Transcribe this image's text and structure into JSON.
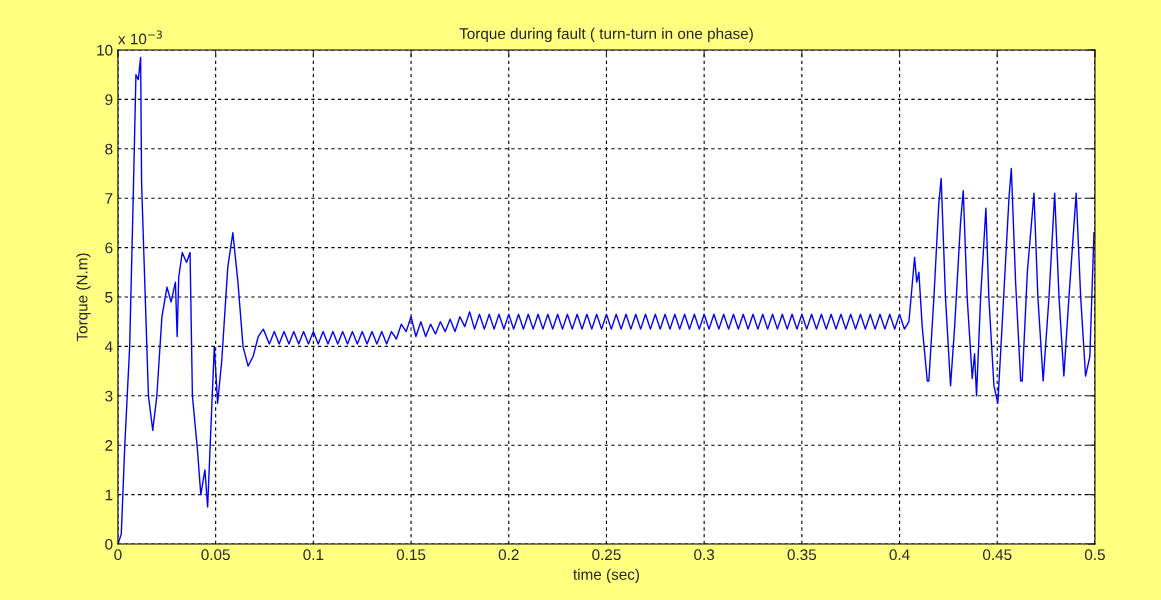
{
  "chart_data": {
    "type": "line",
    "title": "Torque during fault ( turn-turn in one phase)",
    "xlabel": "time (sec)",
    "ylabel": "Torque (N.m)",
    "annotations": [
      "x 10$^{−3}$"
    ],
    "xlim": [
      0,
      0.5
    ],
    "xticks": [
      0,
      0.05,
      0.1,
      0.15,
      0.2,
      0.25,
      0.3,
      0.35,
      0.4,
      0.45,
      0.5
    ],
    "ylim": [
      0,
      10
    ],
    "yticks": [
      0,
      1,
      2,
      3,
      4,
      5,
      6,
      7,
      8,
      9,
      10
    ],
    "grid": true,
    "series": [
      {
        "color": "#0000ff",
        "x": [
          0,
          0.0017,
          0.0035,
          0.006,
          0.0078,
          0.0092,
          0.0104,
          0.0116,
          0.0121,
          0.0138,
          0.0156,
          0.0178,
          0.0199,
          0.0225,
          0.0251,
          0.0272,
          0.0294,
          0.0303,
          0.0311,
          0.0329,
          0.0351,
          0.0369,
          0.0381,
          0.0407,
          0.0424,
          0.0445,
          0.0459,
          0.0472,
          0.0493,
          0.051,
          0.0531,
          0.0562,
          0.0588,
          0.0614,
          0.064,
          0.0666,
          0.0692,
          0.0718,
          0.0744,
          0.0775,
          0.08,
          0.0825,
          0.085,
          0.0875,
          0.09,
          0.0925,
          0.095,
          0.0975,
          0.1,
          0.1025,
          0.105,
          0.1075,
          0.11,
          0.1125,
          0.115,
          0.1175,
          0.12,
          0.1225,
          0.125,
          0.1275,
          0.13,
          0.1325,
          0.135,
          0.1375,
          0.14,
          0.1425,
          0.145,
          0.1475,
          0.15,
          0.1525,
          0.155,
          0.1575,
          0.16,
          0.1625,
          0.165,
          0.1675,
          0.17,
          0.1725,
          0.175,
          0.1775,
          0.18,
          0.1825,
          0.185,
          0.1875,
          0.19,
          0.1925,
          0.195,
          0.1975,
          0.2,
          0.2025,
          0.205,
          0.2075,
          0.21,
          0.2125,
          0.215,
          0.2175,
          0.22,
          0.2225,
          0.225,
          0.2275,
          0.23,
          0.2325,
          0.235,
          0.2375,
          0.24,
          0.2425,
          0.245,
          0.2475,
          0.25,
          0.2525,
          0.255,
          0.2575,
          0.26,
          0.2625,
          0.265,
          0.2675,
          0.27,
          0.2725,
          0.275,
          0.2775,
          0.28,
          0.2825,
          0.285,
          0.2875,
          0.29,
          0.2925,
          0.295,
          0.2975,
          0.3,
          0.3025,
          0.305,
          0.3075,
          0.31,
          0.3125,
          0.315,
          0.3175,
          0.32,
          0.3225,
          0.325,
          0.3275,
          0.33,
          0.3325,
          0.335,
          0.3375,
          0.34,
          0.3425,
          0.345,
          0.3475,
          0.35,
          0.3525,
          0.355,
          0.3575,
          0.36,
          0.3625,
          0.365,
          0.3675,
          0.37,
          0.3725,
          0.375,
          0.3775,
          0.38,
          0.3825,
          0.385,
          0.3875,
          0.39,
          0.3925,
          0.395,
          0.3975,
          0.4,
          0.4025,
          0.4048,
          0.4077,
          0.4088,
          0.4099,
          0.4116,
          0.4142,
          0.415,
          0.4176,
          0.4201,
          0.4213,
          0.4235,
          0.4261,
          0.4282,
          0.4312,
          0.4326,
          0.4346,
          0.4372,
          0.4384,
          0.4394,
          0.4415,
          0.4442,
          0.4457,
          0.4483,
          0.4503,
          0.4526,
          0.456,
          0.4572,
          0.4594,
          0.462,
          0.4628,
          0.4654,
          0.4688,
          0.4708,
          0.4735,
          0.4765,
          0.4794,
          0.4816,
          0.4841,
          0.4867,
          0.4904,
          0.4927,
          0.4952,
          0.4974,
          0.4995,
          0.5
        ],
        "values": [
          0,
          0.2,
          2,
          4,
          7,
          9.5,
          9.4,
          9.85,
          7.3,
          5.2,
          3,
          2.3,
          3,
          4.6,
          5.2,
          4.9,
          5.3,
          4.2,
          5.4,
          5.9,
          5.7,
          5.9,
          3,
          1.9,
          1,
          1.5,
          0.75,
          2,
          4,
          2.85,
          3.7,
          5.6,
          6.3,
          5.3,
          4,
          3.6,
          3.8,
          4.2,
          4.35,
          4.05,
          4.3,
          4.05,
          4.3,
          4.05,
          4.3,
          4.05,
          4.3,
          4.05,
          4.3,
          4.05,
          4.3,
          4.05,
          4.3,
          4.05,
          4.3,
          4.05,
          4.3,
          4.05,
          4.3,
          4.05,
          4.3,
          4.05,
          4.3,
          4.05,
          4.3,
          4.15,
          4.45,
          4.3,
          4.6,
          4.2,
          4.5,
          4.2,
          4.45,
          4.25,
          4.5,
          4.3,
          4.55,
          4.3,
          4.6,
          4.4,
          4.7,
          4.35,
          4.65,
          4.35,
          4.65,
          4.35,
          4.65,
          4.35,
          4.65,
          4.35,
          4.65,
          4.35,
          4.65,
          4.35,
          4.65,
          4.35,
          4.65,
          4.35,
          4.65,
          4.35,
          4.65,
          4.35,
          4.65,
          4.35,
          4.65,
          4.35,
          4.65,
          4.35,
          4.65,
          4.35,
          4.65,
          4.35,
          4.65,
          4.35,
          4.65,
          4.35,
          4.65,
          4.35,
          4.65,
          4.35,
          4.65,
          4.35,
          4.65,
          4.35,
          4.65,
          4.35,
          4.65,
          4.35,
          4.65,
          4.35,
          4.65,
          4.35,
          4.65,
          4.35,
          4.65,
          4.35,
          4.65,
          4.35,
          4.65,
          4.35,
          4.65,
          4.35,
          4.65,
          4.35,
          4.65,
          4.35,
          4.65,
          4.35,
          4.65,
          4.35,
          4.65,
          4.35,
          4.65,
          4.35,
          4.65,
          4.35,
          4.65,
          4.35,
          4.65,
          4.35,
          4.65,
          4.35,
          4.65,
          4.35,
          4.65,
          4.35,
          4.65,
          4.35,
          4.65,
          4.35,
          4.5,
          5.8,
          5.3,
          5.5,
          4.4,
          3.3,
          3.3,
          5,
          6.9,
          7.4,
          5,
          3.2,
          4.4,
          6.5,
          7.15,
          5,
          3.35,
          3.85,
          3,
          5,
          6.8,
          5,
          3.2,
          2.85,
          4.5,
          7,
          7.6,
          5.3,
          3.3,
          3.3,
          5.5,
          7.1,
          5,
          3.3,
          5,
          7.1,
          5,
          3.4,
          5,
          7.1,
          5,
          3.4,
          3.8,
          6.3,
          6.3
        ]
      }
    ]
  }
}
